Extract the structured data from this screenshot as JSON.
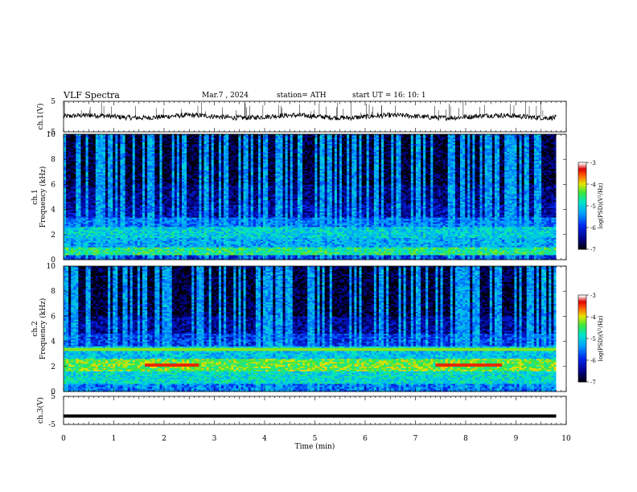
{
  "header": {
    "title": "VLF  Spectra",
    "date": "Mar.7  , 2024",
    "station": "station= ATH",
    "start_ut": "start  UT  =   16: 10: 1"
  },
  "chart_data": [
    {
      "type": "line",
      "name": "ch1-waveform",
      "ylabel": "ch.1(V)",
      "ylim": [
        -5,
        5
      ],
      "yticks": [
        "5",
        "-5"
      ],
      "xlim": [
        0,
        10
      ],
      "description_values": {
        "baseline": 0,
        "amplitude_approx": 1
      }
    },
    {
      "type": "heatmap",
      "name": "ch1-spectrogram",
      "ylabel_lines": [
        "ch.1",
        "Frequency (kHz)"
      ],
      "ylim": [
        0,
        10
      ],
      "yticks": [
        "0",
        "2",
        "4",
        "6",
        "8",
        "10"
      ],
      "xlim": [
        0,
        9.8
      ],
      "colorbar": {
        "label": "log(PSD)(V²/Hz)",
        "range": [
          -7,
          -3
        ],
        "ticks": [
          "-3",
          "-4",
          "-5",
          "-6",
          "-7"
        ]
      },
      "bands": [
        {
          "f": [
            0.0,
            0.4
          ],
          "level": -6.0
        },
        {
          "f": [
            0.4,
            1.0
          ],
          "level": -4.6
        },
        {
          "f": [
            1.0,
            1.8
          ],
          "level": -5.3
        },
        {
          "f": [
            1.8,
            2.6
          ],
          "level": -5.0
        },
        {
          "f": [
            2.6,
            3.4
          ],
          "level": -5.6
        },
        {
          "f": [
            3.4,
            4.4
          ],
          "level": -6.3
        },
        {
          "f": [
            4.4,
            6.0
          ],
          "level": -6.5
        },
        {
          "f": [
            6.0,
            10.0
          ],
          "level": -6.8
        }
      ]
    },
    {
      "type": "heatmap",
      "name": "ch2-spectrogram",
      "ylabel_lines": [
        "ch.2",
        "Frequency (kHz)"
      ],
      "ylim": [
        0,
        10
      ],
      "yticks": [
        "0",
        "2",
        "4",
        "6",
        "8",
        "10"
      ],
      "xlim": [
        0,
        9.8
      ],
      "colorbar": {
        "label": "log(PSD)(V²/Hz)",
        "range": [
          -7,
          -3
        ],
        "ticks": [
          "-3",
          "-4",
          "-5",
          "-6",
          "-7"
        ]
      },
      "bands": [
        {
          "f": [
            0.0,
            0.6
          ],
          "level": -5.6
        },
        {
          "f": [
            0.6,
            1.6
          ],
          "level": -4.9
        },
        {
          "f": [
            1.6,
            2.6
          ],
          "level": -4.3
        },
        {
          "f": [
            2.6,
            3.6
          ],
          "level": -5.1
        },
        {
          "f": [
            3.6,
            4.6
          ],
          "level": -5.9
        },
        {
          "f": [
            4.6,
            6.0
          ],
          "level": -6.4
        },
        {
          "f": [
            6.0,
            10.0
          ],
          "level": -6.8
        }
      ],
      "line_features": [
        {
          "f": 2.1,
          "t": [
            1.6,
            2.7
          ],
          "level": -3.4
        },
        {
          "f": 2.1,
          "t": [
            7.4,
            8.7
          ],
          "level": -3.4
        },
        {
          "f": 3.4,
          "t": [
            0.0,
            9.8
          ],
          "level": -4.2
        }
      ]
    },
    {
      "type": "line",
      "name": "ch3-waveform",
      "ylabel": "ch.3(V)",
      "ylim": [
        -5,
        5
      ],
      "yticks": [
        "5",
        "-5"
      ],
      "xlim": [
        0,
        10
      ],
      "xlabel": "Time  (min)",
      "xticks": [
        "0",
        "1",
        "2",
        "3",
        "4",
        "5",
        "6",
        "7",
        "8",
        "9",
        "10"
      ],
      "description_values": {
        "baseline": -2,
        "amplitude_approx": 0.2
      }
    }
  ]
}
